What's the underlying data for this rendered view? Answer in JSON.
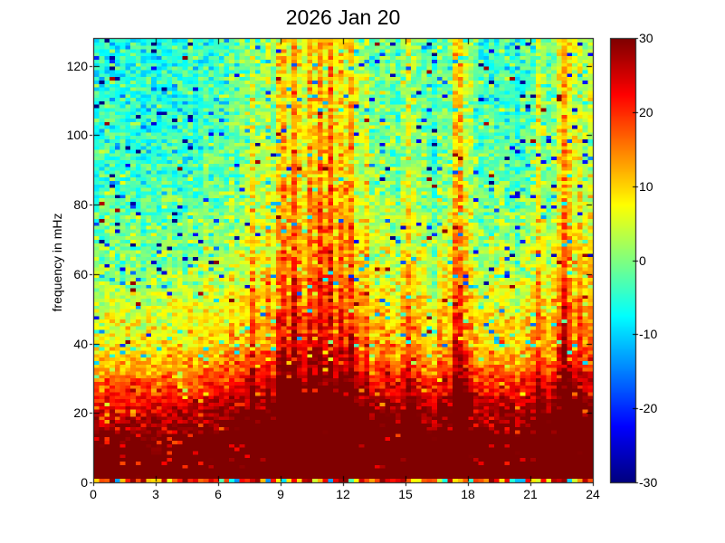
{
  "figure": {
    "background": "#ffffff",
    "text_color": "#000000"
  },
  "chart_data": {
    "type": "heatmap",
    "title": "2026 Jan 20",
    "xlabel": "",
    "ylabel": "frequency in mHz",
    "xlim": [
      0,
      24
    ],
    "ylim": [
      0,
      128
    ],
    "xticks": [
      0,
      3,
      6,
      9,
      12,
      15,
      18,
      21,
      24
    ],
    "xtick_labels": [
      "0",
      "3",
      "6",
      "9",
      "12",
      "15",
      "18",
      "21",
      "24"
    ],
    "yticks": [
      0,
      20,
      40,
      60,
      80,
      100,
      120
    ],
    "ytick_labels": [
      "0",
      "20",
      "40",
      "60",
      "80",
      "100",
      "120"
    ],
    "grid": "off",
    "legend": "none",
    "colorbar": {
      "position": "right",
      "min": -30,
      "max": 30,
      "ticks": [
        30,
        20,
        10,
        0,
        -10,
        -20,
        -30
      ],
      "tick_labels": [
        "30",
        "20",
        "10",
        "0",
        "-10",
        "-20",
        "-30"
      ],
      "colormap": "jet",
      "top_color": "#800000",
      "bottom_color": "#0000a0"
    },
    "grid_cols": 96,
    "grid_rows": 128,
    "time_resolution_hours": 0.25,
    "freq_resolution_mHz": 1,
    "features": {
      "saturated_band": "values at +30 dB (dark red) below about 15 mHz at all hours, extending up to 40-55 mHz during disturbed intervals",
      "quiet_background_high_freq_db": -5,
      "streak_hours": [
        7.6,
        8.2,
        8.9,
        9.5,
        10.3,
        10.9,
        11.3,
        11.9,
        12.4,
        13.0,
        15.0,
        17.3,
        17.6,
        21.3,
        22.6,
        22.9,
        23.3
      ],
      "quietest_interval_hours": [
        0,
        6
      ],
      "most_disturbed_interval_hours": [
        8.5,
        13
      ]
    },
    "model": {
      "base_profile_freq_mHz": [
        1,
        6,
        12,
        16,
        20,
        24,
        28,
        32,
        40,
        48,
        56,
        64,
        72,
        80,
        96,
        112,
        128
      ],
      "base_profile_db": [
        30,
        30,
        29,
        27,
        24,
        20,
        16,
        12,
        6,
        3,
        0,
        -2,
        -3,
        -5,
        -7,
        -8,
        -8
      ],
      "activity_db_per_quarter_hour": [
        3,
        2,
        3,
        2,
        2,
        3,
        2,
        3,
        3,
        2,
        4,
        3,
        3,
        4,
        3,
        2,
        3,
        3,
        4,
        3,
        3,
        4,
        5,
        4,
        5,
        5,
        6,
        6,
        6,
        7,
        14,
        8,
        9,
        12,
        10,
        17,
        18,
        13,
        20,
        14,
        14,
        19,
        15,
        20,
        18,
        21,
        15,
        19,
        15,
        20,
        13,
        11,
        12,
        9,
        8,
        7,
        6,
        6,
        5,
        7,
        15,
        8,
        6,
        5,
        5,
        4,
        5,
        6,
        8,
        17,
        18,
        11,
        8,
        6,
        6,
        5,
        5,
        6,
        5,
        4,
        4,
        5,
        4,
        5,
        7,
        11,
        8,
        6,
        7,
        13,
        19,
        15,
        10,
        13,
        9,
        11
      ],
      "noise_sigma_bands": [
        {
          "f_max": 14,
          "sigma": 1.2
        },
        {
          "f_max": 36,
          "sigma": 3.0
        },
        {
          "f_max": 56,
          "sigma": 3.2
        },
        {
          "f_max": 128,
          "sigma": 3.6
        }
      ],
      "column_jitter_sigma": 1.2,
      "speckle": {
        "blue_min_freq": 34,
        "blue_prob": 0.045,
        "blue_drop_min": 12,
        "blue_drop_rand": 20,
        "darkred_min_freq": 40,
        "darkred_prob": 0.006,
        "darkred_base": 27,
        "darkred_rand": 3,
        "warm_min_freq": 4,
        "warm_max_freq": 44,
        "warm_prob": 0.06,
        "warm_drop_min": 5,
        "warm_drop_rand": 9
      },
      "bottom_row": {
        "cool_prob": 0.15,
        "cool_base": -14,
        "cool_rand": 12,
        "mid_prob": 0.25,
        "mid_base": 4,
        "mid_rand": 10,
        "hot_base": 16,
        "hot_rand": 14
      },
      "clip_db": [
        -30,
        30
      ]
    }
  },
  "render": {
    "seed": 977
  }
}
